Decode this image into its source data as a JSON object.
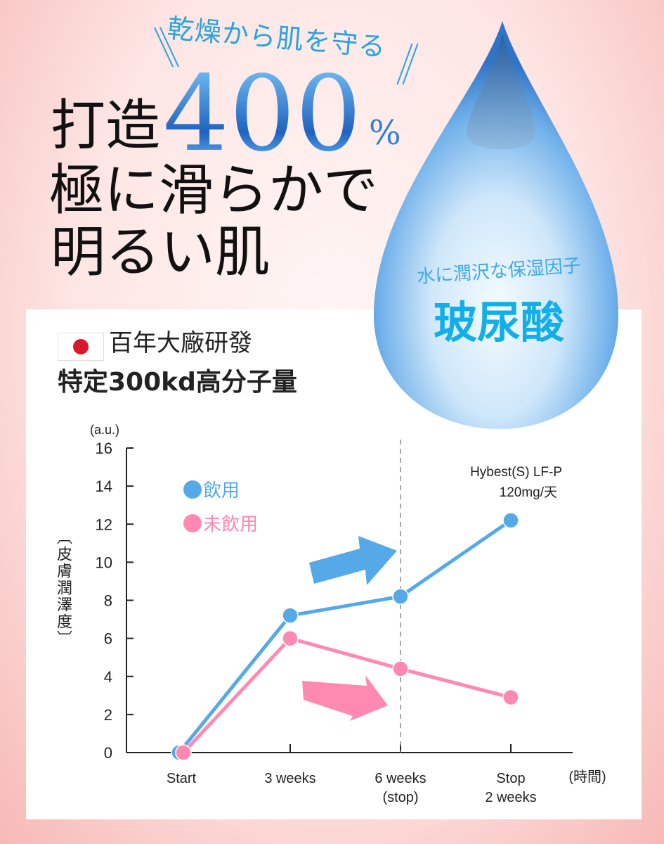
{
  "header": {
    "tagline": "乾燥から肌を守る",
    "headline_prefix": "打造",
    "headline_number": "400",
    "headline_percent": "%",
    "headline_line2": "極に滑らかで",
    "headline_line3": "明るい肌"
  },
  "drop": {
    "subtitle": "水に潤沢な保湿因子",
    "title": "玻尿酸"
  },
  "info": {
    "flag": "japan-flag-icon",
    "origin": "百年大廠研發",
    "spec": "特定300kd高分子量"
  },
  "colors": {
    "blue": "#55a9e6",
    "pink": "#ff89b1",
    "accent_text": "#2aa3e0"
  },
  "chart_data": {
    "type": "line",
    "y_unit": "(a.u.)",
    "ylabel": "〔皮膚潤澤度〕",
    "xlabel": "(時間)",
    "ylim": [
      0,
      16
    ],
    "yticks": [
      0,
      2,
      4,
      6,
      8,
      10,
      12,
      14,
      16
    ],
    "categories": [
      "Start",
      "3 weeks",
      "6 weeks\n(stop)",
      "Stop\n2 weeks"
    ],
    "series": [
      {
        "name": "飲用",
        "color": "#55a9e6",
        "values": [
          0,
          7.2,
          8.2,
          12.2
        ]
      },
      {
        "name": "未飲用",
        "color": "#ff89b1",
        "values": [
          0,
          6.0,
          4.4,
          2.9
        ]
      }
    ],
    "annotation_line1": "Hybest(S) LF-P",
    "annotation_line2": "120mg/天",
    "marker_line_at": "6 weeks\n(stop)",
    "grid": false,
    "legend": "top-left"
  }
}
